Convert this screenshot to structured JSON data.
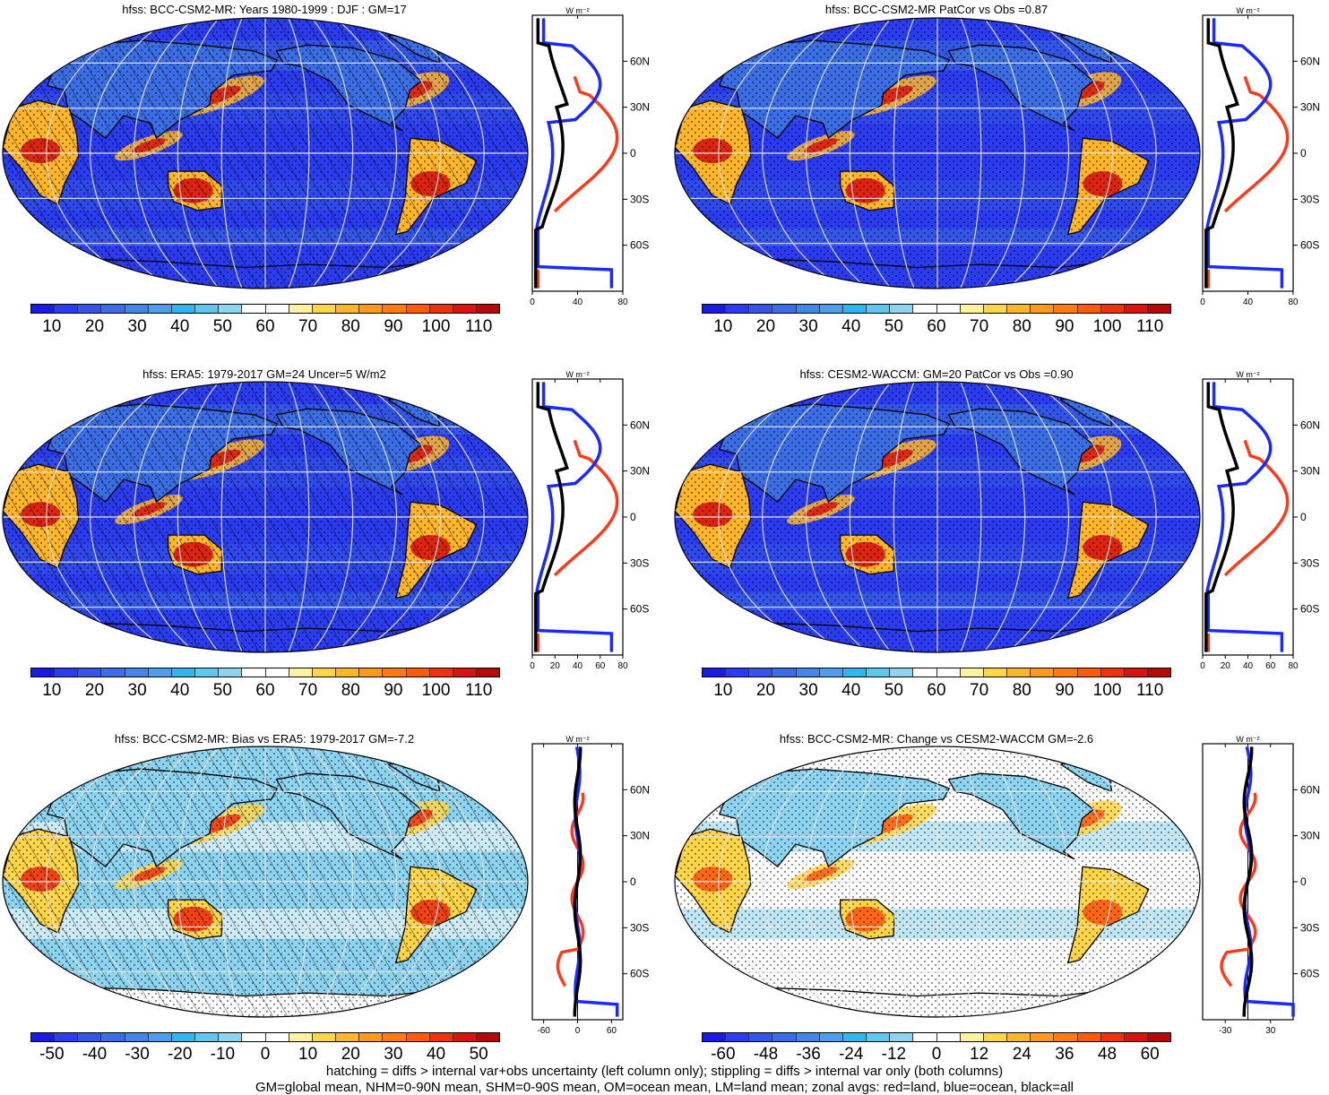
{
  "palette_abs": [
    "#1a1ae6",
    "#2a3bf0",
    "#3355e8",
    "#3b6ee4",
    "#4486e6",
    "#4e9ee9",
    "#34b4ec",
    "#60c6ee",
    "#8cd4ef",
    "#ffffff",
    "#ffffff",
    "#fff2a0",
    "#ffd54a",
    "#ffb62b",
    "#ff9a1e",
    "#ff7a12",
    "#ff5a0e",
    "#f1310e",
    "#d9140e",
    "#b50a0a"
  ],
  "palette_diff": [
    "#1a1ae6",
    "#2a3bf0",
    "#3355e8",
    "#3b6ee4",
    "#4486e6",
    "#4e9ee9",
    "#34b4ec",
    "#60c6ee",
    "#8cd4ef",
    "#ffffff",
    "#ffffff",
    "#fff2a0",
    "#ffd54a",
    "#ffb62b",
    "#ff9a1e",
    "#ff7a12",
    "#ff5a0e",
    "#f1310e",
    "#d9140e",
    "#b50a0a"
  ],
  "colors": {
    "land": "#ff3a1a",
    "ocean": "#1a2aff",
    "all": "#000000"
  },
  "lat_labels": [
    "60N",
    "30N",
    "0",
    "30S",
    "60S"
  ],
  "units": "W m⁻²",
  "panels": [
    {
      "id": "p1",
      "title": "hfss: BCC-CSM2-MR: Years 1980-1999 : DJF : GM=17",
      "colorbar_ticks": [
        "10",
        "20",
        "30",
        "40",
        "50",
        "60",
        "70",
        "80",
        "90",
        "100",
        "110"
      ],
      "zonal_ticks": [
        "0",
        "40",
        "80"
      ],
      "zonal_range": [
        0,
        80
      ]
    },
    {
      "id": "p2",
      "title": "hfss: BCC-CSM2-MR PatCor vs Obs =0.87",
      "colorbar_ticks": [
        "10",
        "20",
        "30",
        "40",
        "50",
        "60",
        "70",
        "80",
        "90",
        "100",
        "110"
      ],
      "zonal_ticks": [
        "0",
        "40",
        "80"
      ],
      "zonal_range": [
        0,
        80
      ]
    },
    {
      "id": "p3",
      "title": "hfss: ERA5: 1979-2017 GM=24 Uncer=5 W/m2",
      "colorbar_ticks": [
        "10",
        "20",
        "30",
        "40",
        "50",
        "60",
        "70",
        "80",
        "90",
        "100",
        "110"
      ],
      "zonal_ticks": [
        "0",
        "20",
        "40",
        "60",
        "80"
      ],
      "zonal_range": [
        0,
        80
      ]
    },
    {
      "id": "p4",
      "title": "hfss: CESM2-WACCM: GM=20 PatCor vs Obs =0.90",
      "colorbar_ticks": [
        "10",
        "20",
        "30",
        "40",
        "50",
        "60",
        "70",
        "80",
        "90",
        "100",
        "110"
      ],
      "zonal_ticks": [
        "0",
        "20",
        "40",
        "60",
        "80"
      ],
      "zonal_range": [
        0,
        80
      ]
    },
    {
      "id": "p5",
      "title": "hfss: BCC-CSM2-MR: Bias vs ERA5: 1979-2017 GM=-7.2",
      "colorbar_ticks": [
        "-50",
        "-40",
        "-30",
        "-20",
        "-10",
        "0",
        "10",
        "20",
        "30",
        "40",
        "50"
      ],
      "zonal_ticks": [
        "-60",
        "0",
        "60"
      ],
      "zonal_range": [
        -80,
        80
      ]
    },
    {
      "id": "p6",
      "title": "hfss: BCC-CSM2-MR: Change vs CESM2-WACCM GM=-2.6",
      "colorbar_ticks": [
        "-60",
        "-48",
        "-36",
        "-24",
        "-12",
        "0",
        "12",
        "24",
        "36",
        "48",
        "60"
      ],
      "zonal_ticks": [
        "-30",
        "30"
      ],
      "zonal_range": [
        -60,
        60
      ]
    }
  ],
  "footer": {
    "line1": "hatching = diffs > internal var+obs uncertainty (left column only); stippling = diffs > internal var only (both columns)",
    "line2": "GM=global mean, NHM=0-90N mean, SHM=0-90S mean, OM=ocean mean, LM=land mean; zonal avgs: red=land, blue=ocean, black=all"
  }
}
